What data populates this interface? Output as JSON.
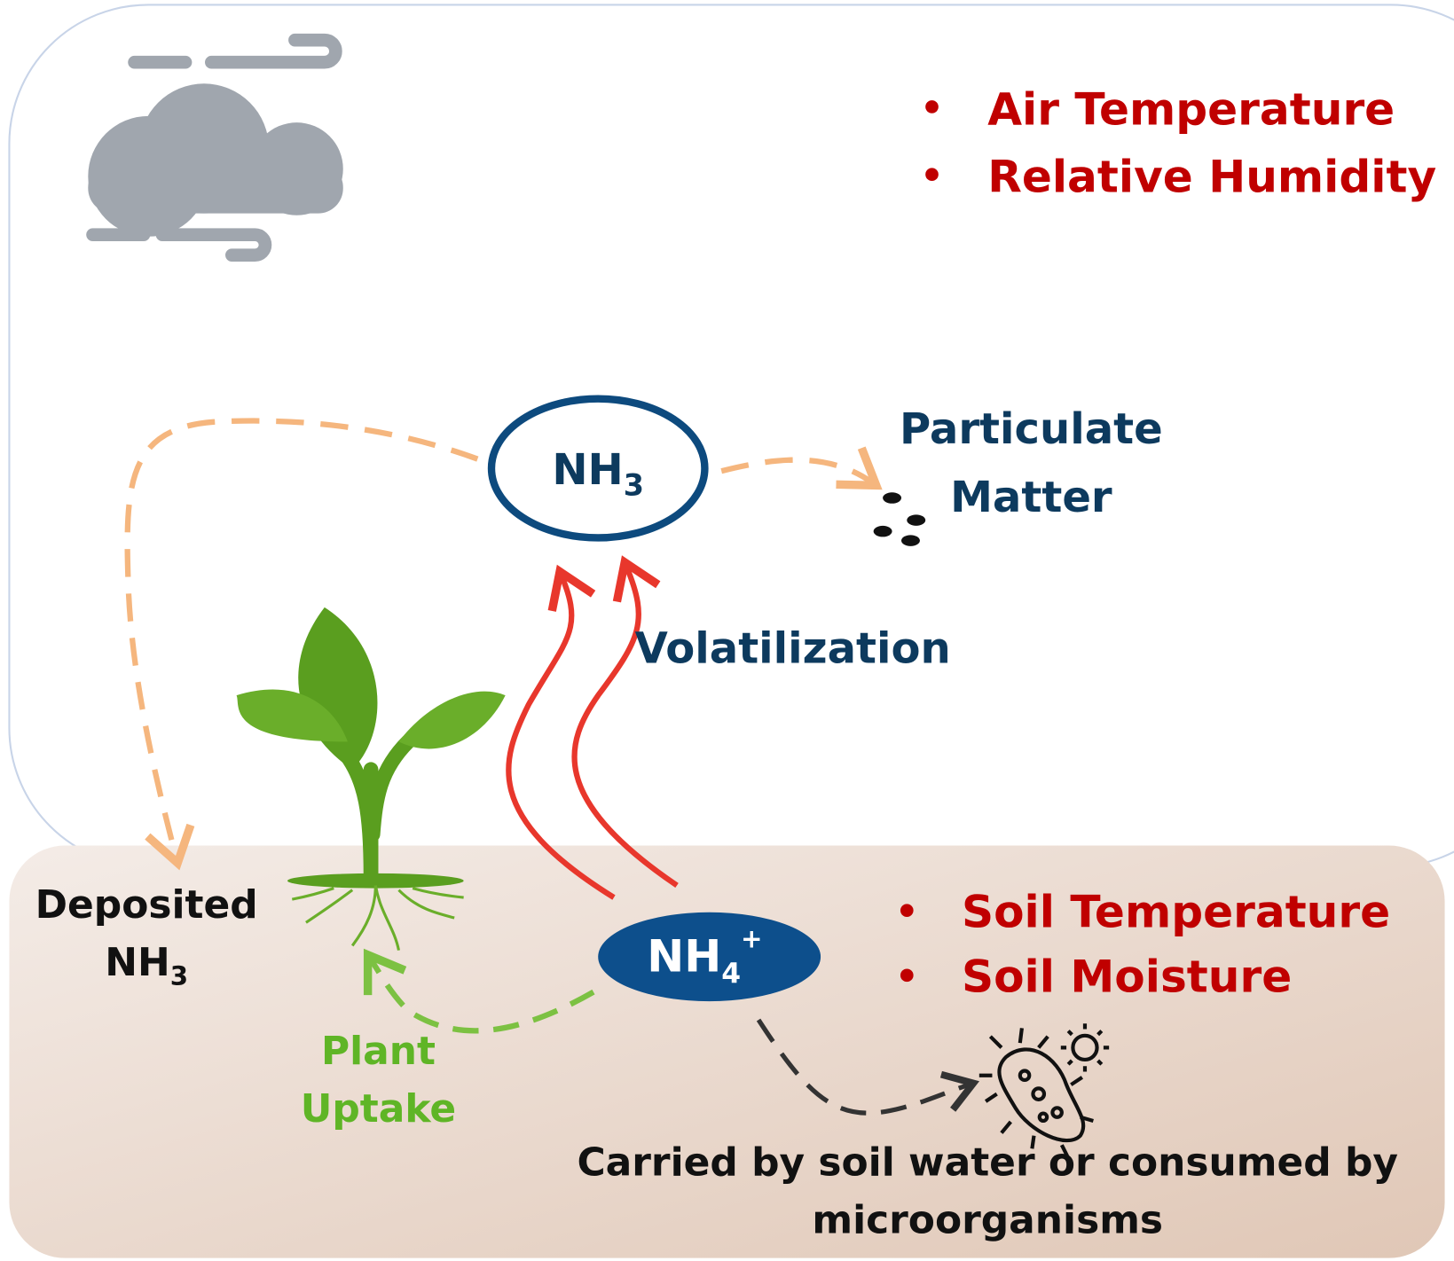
{
  "atmosphere": {
    "factors": [
      "Air Temperature",
      "Relative Humidity"
    ]
  },
  "soil": {
    "factors": [
      "Soil Temperature",
      "Soil Moisture"
    ]
  },
  "nodes": [
    {
      "label": "NH",
      "subscript": "3"
    },
    {
      "label": "NH",
      "subscript": "4",
      "superscript": "+"
    }
  ],
  "labels": {
    "particulate": [
      "Particulate",
      "Matter"
    ],
    "volatilization": "Volatilization",
    "deposited": {
      "line1": "Deposited",
      "label": "NH",
      "subscript": "3"
    },
    "uptake": [
      "Plant",
      "Uptake"
    ],
    "carried": [
      "Carried by soil water or consumed by",
      "microorganisms"
    ]
  }
}
